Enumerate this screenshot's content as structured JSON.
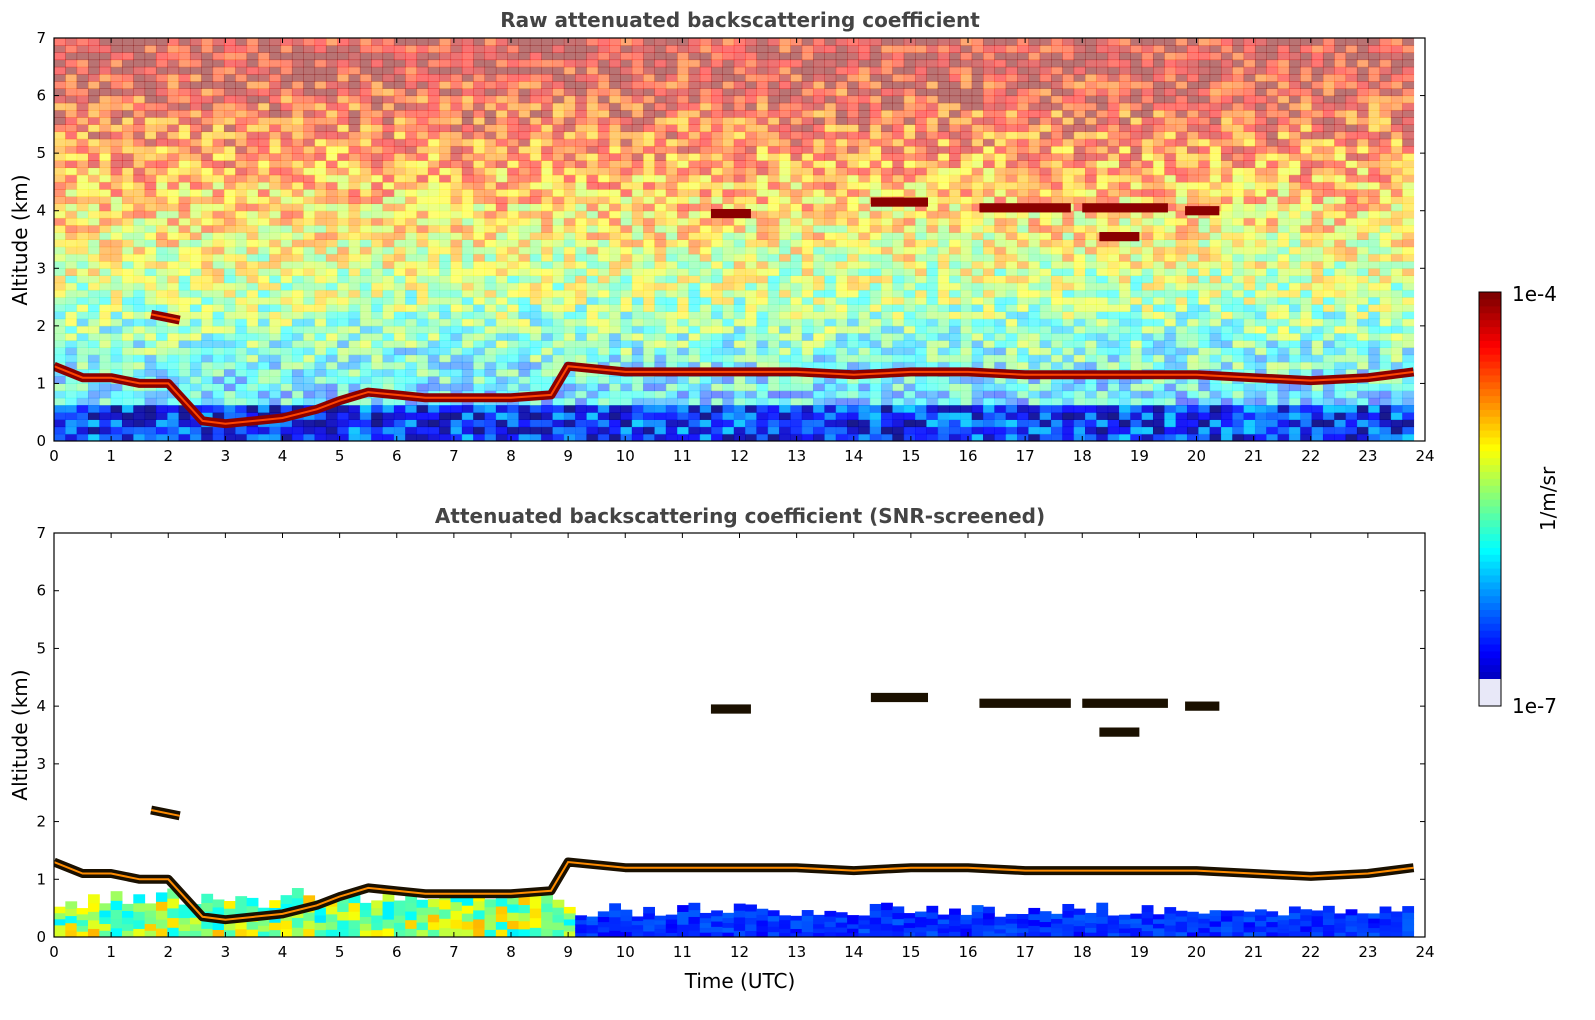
{
  "chart_data": [
    {
      "type": "heatmap",
      "title": "Raw attenuated backscattering coefficient",
      "xlabel": "",
      "ylabel": "Altitude (km)",
      "xlim": [
        0,
        24
      ],
      "ylim": [
        0,
        7
      ],
      "xticks": [
        "0",
        "1",
        "2",
        "3",
        "4",
        "5",
        "6",
        "7",
        "8",
        "9",
        "10",
        "11",
        "12",
        "13",
        "14",
        "15",
        "16",
        "17",
        "18",
        "19",
        "20",
        "21",
        "22",
        "23",
        "24"
      ],
      "yticks": [
        "0",
        "1",
        "2",
        "3",
        "4",
        "5",
        "6",
        "7"
      ],
      "noise_background": true,
      "layers": [
        {
          "name": "boundary-layer-top",
          "points": [
            [
              0,
              1.3
            ],
            [
              0.5,
              1.1
            ],
            [
              1,
              1.1
            ],
            [
              1.5,
              1.0
            ],
            [
              2,
              1.0
            ],
            [
              2.6,
              0.35
            ],
            [
              3,
              0.3
            ],
            [
              4,
              0.4
            ],
            [
              4.6,
              0.55
            ],
            [
              5,
              0.7
            ],
            [
              5.5,
              0.85
            ],
            [
              6,
              0.8
            ],
            [
              6.5,
              0.75
            ],
            [
              7,
              0.75
            ],
            [
              8,
              0.75
            ],
            [
              8.7,
              0.8
            ],
            [
              9,
              1.3
            ],
            [
              10,
              1.2
            ],
            [
              11,
              1.2
            ],
            [
              12,
              1.2
            ],
            [
              13,
              1.2
            ],
            [
              14,
              1.15
            ],
            [
              15,
              1.2
            ],
            [
              16,
              1.2
            ],
            [
              17,
              1.15
            ],
            [
              18,
              1.15
            ],
            [
              19,
              1.15
            ],
            [
              20,
              1.15
            ],
            [
              21,
              1.1
            ],
            [
              22,
              1.05
            ],
            [
              23,
              1.1
            ],
            [
              23.8,
              1.2
            ]
          ]
        },
        {
          "name": "elevated-layer-2km",
          "points": [
            [
              1.7,
              2.2
            ],
            [
              2.2,
              2.1
            ]
          ]
        },
        {
          "name": "mid-cloud-4km",
          "segments": [
            [
              11.5,
              12.2,
              3.95
            ],
            [
              14.3,
              15.3,
              4.15
            ],
            [
              16.2,
              17.8,
              4.05
            ],
            [
              18.0,
              19.5,
              4.05
            ],
            [
              19.8,
              20.4,
              4.0
            ],
            [
              18.3,
              19.0,
              3.55
            ]
          ]
        }
      ]
    },
    {
      "type": "heatmap",
      "title": "Attenuated backscattering coefficient (SNR-screened)",
      "xlabel": "Time (UTC)",
      "ylabel": "Altitude (km)",
      "xlim": [
        0,
        24
      ],
      "ylim": [
        0,
        7
      ],
      "xticks": [
        "0",
        "1",
        "2",
        "3",
        "4",
        "5",
        "6",
        "7",
        "8",
        "9",
        "10",
        "11",
        "12",
        "13",
        "14",
        "15",
        "16",
        "17",
        "18",
        "19",
        "20",
        "21",
        "22",
        "23",
        "24"
      ],
      "yticks": [
        "0",
        "1",
        "2",
        "3",
        "4",
        "5",
        "6",
        "7"
      ],
      "noise_background": false
    }
  ],
  "colorbar": {
    "label": "1/m/sr",
    "max_label": "1e-4",
    "min_label": "1e-7",
    "colormap": "jet",
    "low_color": "#e8e8f8",
    "high_color": "#7f0000"
  }
}
